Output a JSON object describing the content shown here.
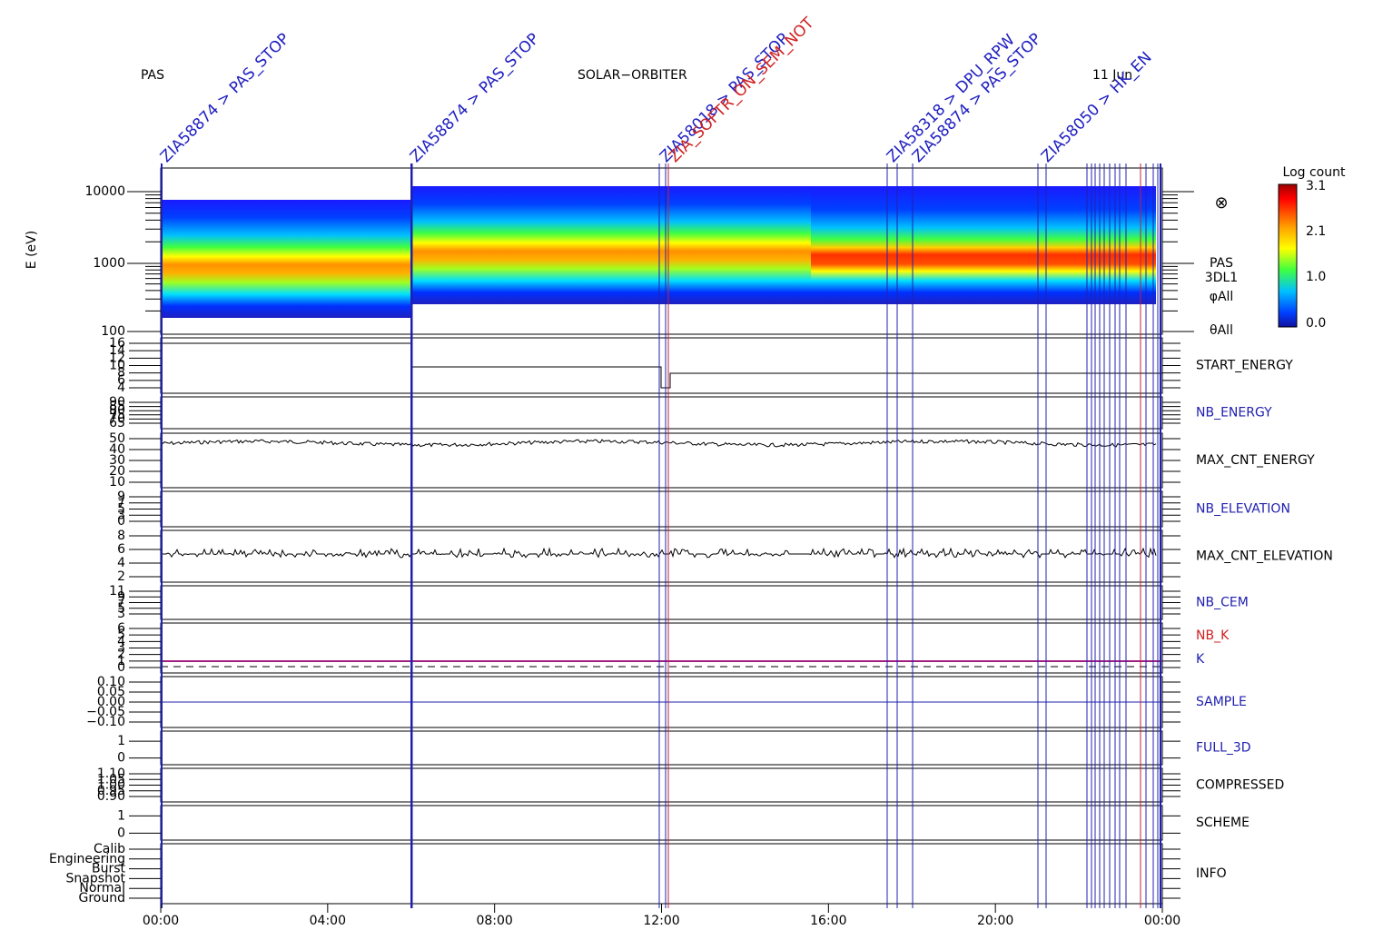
{
  "header": {
    "left": "PAS",
    "center": "SOLAR−ORBITER",
    "right": "11 Jun"
  },
  "x_axis": {
    "ticks": [
      "00:00",
      "04:00",
      "08:00",
      "12:00",
      "16:00",
      "20:00",
      "00:00"
    ]
  },
  "spectrogram": {
    "y_label": "E (eV)",
    "ticks": [
      "10000",
      "1000",
      "100"
    ],
    "labels": [
      "PAS",
      "3DL1",
      "φAll",
      "θAll"
    ],
    "colorbar": {
      "title": "Log count",
      "ticks": [
        "3.1",
        "2.1",
        "1.0",
        "0.0"
      ]
    }
  },
  "panels": [
    {
      "label": "START_ENERGY",
      "ticks": [
        "16",
        "14",
        "12",
        "10",
        "8",
        "6",
        "4"
      ]
    },
    {
      "label": "NB_ENERGY",
      "ticks": [
        "90",
        "85",
        "80",
        "75",
        "70",
        "65"
      ]
    },
    {
      "label": "MAX_CNT_ENERGY",
      "ticks": [
        "50",
        "40",
        "30",
        "20",
        "10"
      ]
    },
    {
      "label": "NB_ELEVATION",
      "ticks": [
        "9",
        "7",
        "5",
        "3",
        "0"
      ]
    },
    {
      "label": "MAX_CNT_ELEVATION",
      "ticks": [
        "8",
        "6",
        "4",
        "2"
      ]
    },
    {
      "label": "NB_CEM",
      "ticks": [
        "11",
        "9",
        "7",
        "5",
        "3"
      ]
    },
    {
      "label": "NB_K",
      "second_label": "K",
      "ticks": [
        "6",
        "5",
        "4",
        "3",
        "2",
        "1",
        "0"
      ]
    },
    {
      "label": "SAMPLE",
      "ticks": [
        "0.10",
        "0.05",
        "0.00",
        "−0.05",
        "−0.10"
      ]
    },
    {
      "label": "FULL_3D",
      "ticks": [
        "1",
        "0"
      ]
    },
    {
      "label": "COMPRESSED",
      "ticks": [
        "1.10",
        "1.05",
        "1.00",
        "0.95",
        "0.90"
      ]
    },
    {
      "label": "SCHEME",
      "ticks": [
        "1",
        "0"
      ]
    },
    {
      "label": "INFO",
      "ticks": [
        "Calib",
        "Engineering",
        "Burst",
        "Snapshot",
        "Normal",
        "Ground"
      ]
    }
  ],
  "events": [
    "ZIA58874 > PAS_STOP",
    "ZIA58874 > PAS_STOP",
    "ZIA58018 > PAS_STOP",
    "ZIA_SOFTR_ON_SEM_NOT",
    "ZIA58318 > DPU_RPW",
    "ZIA58874 > PAS_STOP",
    "ZIA58050 > HK_EN"
  ]
}
